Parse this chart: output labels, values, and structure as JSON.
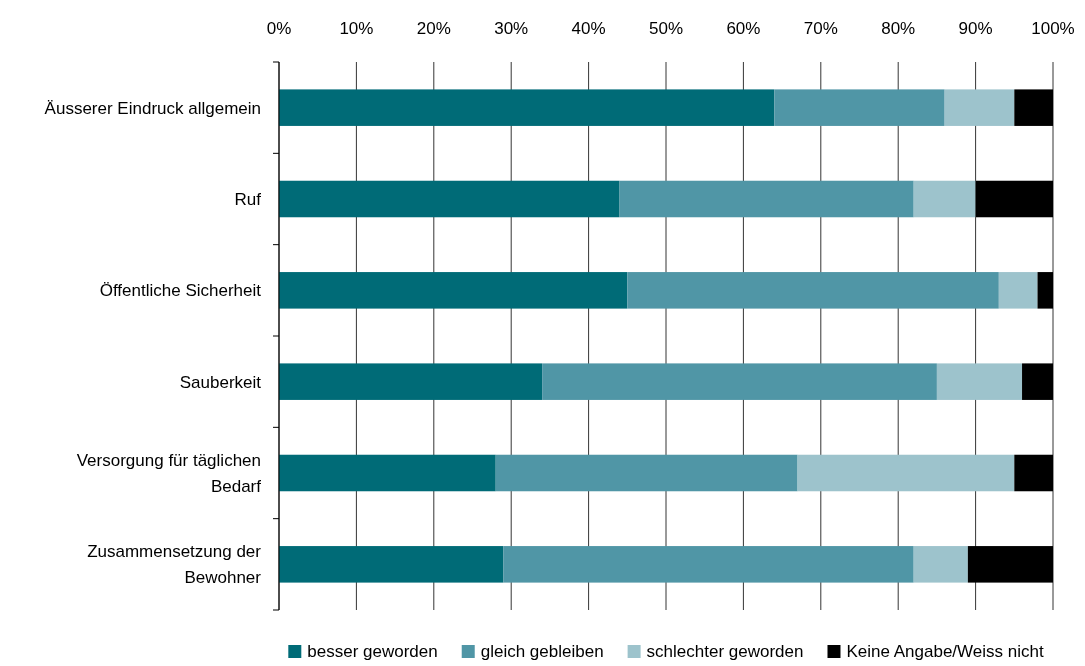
{
  "chart_data": {
    "type": "bar",
    "orientation": "horizontal",
    "stacked": true,
    "categories": [
      "Äusserer Eindruck allgemein",
      "Ruf",
      "Öffentliche Sicherheit",
      "Sauberkeit",
      "Versorgung für täglichen Bedarf",
      "Zusammensetzung der Bewohner"
    ],
    "series": [
      {
        "name": "besser geworden",
        "color": "#006b77",
        "values": [
          64,
          44,
          45,
          34,
          28,
          29
        ]
      },
      {
        "name": "gleich gebleiben",
        "color": "#5096a6",
        "values": [
          22,
          38,
          48,
          51,
          39,
          53
        ]
      },
      {
        "name": "schlechter geworden",
        "color": "#9dc3cc",
        "values": [
          9,
          8,
          5,
          11,
          28,
          7
        ]
      },
      {
        "name": "Keine Angabe/Weiss nicht",
        "color": "#000000",
        "values": [
          5,
          10,
          2,
          4,
          5,
          11
        ]
      }
    ],
    "xlim": [
      0,
      100
    ],
    "xticks": [
      {
        "value": 0,
        "label": "0%"
      },
      {
        "value": 10,
        "label": "10%"
      },
      {
        "value": 20,
        "label": "20%"
      },
      {
        "value": 30,
        "label": "30%"
      },
      {
        "value": 40,
        "label": "40%"
      },
      {
        "value": 50,
        "label": "50%"
      },
      {
        "value": 60,
        "label": "60%"
      },
      {
        "value": 70,
        "label": "70%"
      },
      {
        "value": 80,
        "label": "80%"
      },
      {
        "value": 90,
        "label": "90%"
      },
      {
        "value": 100,
        "label": "100%"
      }
    ],
    "grid": "x",
    "legend": "bottom"
  }
}
